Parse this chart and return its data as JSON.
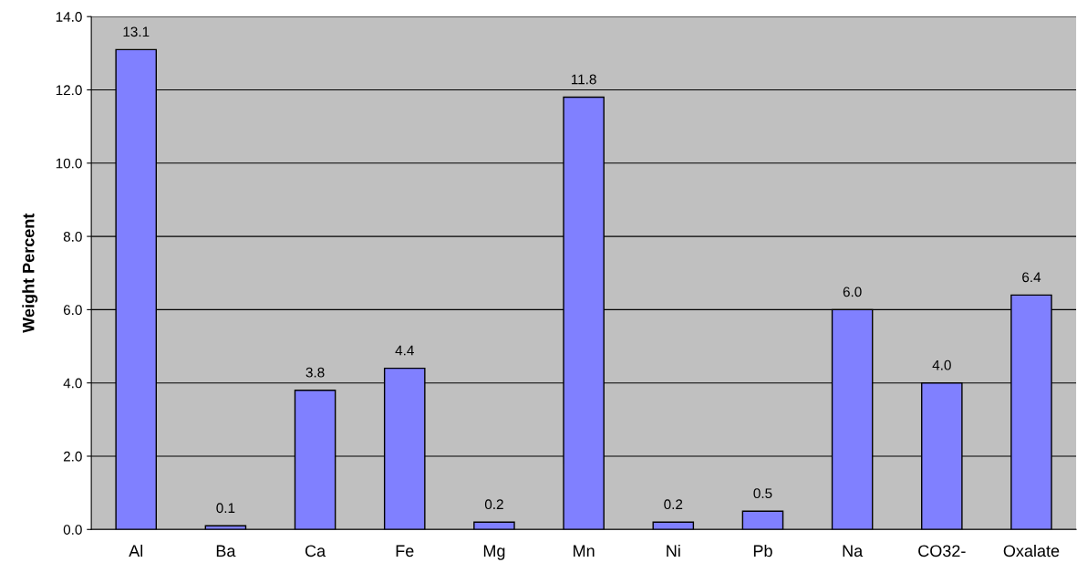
{
  "chart_data": {
    "type": "bar",
    "ylabel": "Weight Percent",
    "categories": [
      "Al",
      "Ba",
      "Ca",
      "Fe",
      "Mg",
      "Mn",
      "Ni",
      "Pb",
      "Na",
      "CO32-",
      "Oxalate"
    ],
    "values": [
      13.1,
      0.1,
      3.8,
      4.4,
      0.2,
      11.8,
      0.2,
      0.5,
      6.0,
      4.0,
      6.4
    ],
    "value_labels": [
      "13.1",
      "0.1",
      "3.8",
      "4.4",
      "0.2",
      "11.8",
      "0.2",
      "0.5",
      "6.0",
      "4.0",
      "6.4"
    ],
    "color": "#8080ff",
    "ylim": [
      0,
      14
    ],
    "yticks": [
      {
        "value": 0,
        "label": "0.0"
      },
      {
        "value": 2,
        "label": "2.0"
      },
      {
        "value": 4,
        "label": "4.0"
      },
      {
        "value": 6,
        "label": "6.0"
      },
      {
        "value": 8,
        "label": "8.0"
      },
      {
        "value": 10,
        "label": "10.0"
      },
      {
        "value": 12,
        "label": "12.0"
      },
      {
        "value": 14,
        "label": "14.0"
      }
    ],
    "grid": "y"
  }
}
